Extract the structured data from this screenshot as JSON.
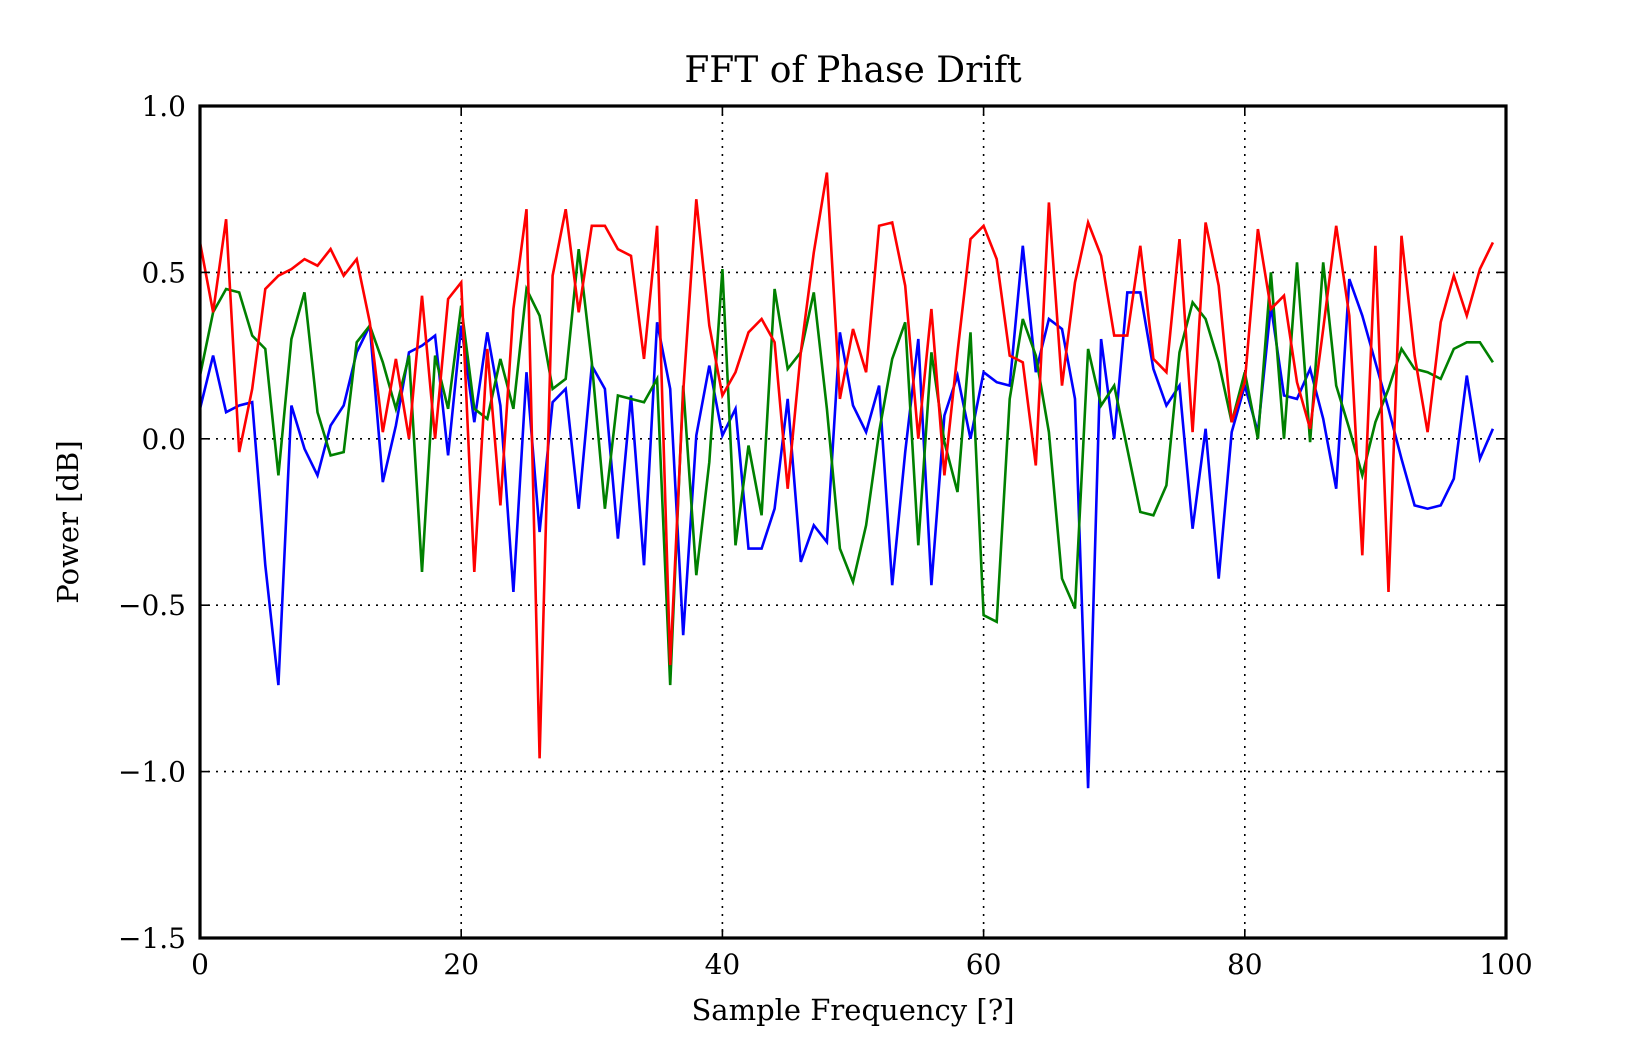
{
  "chart_data": {
    "type": "line",
    "title": "FFT of Phase Drift",
    "xlabel": "Sample Frequency [?]",
    "ylabel": "Power [dB]",
    "xlim": [
      0,
      100
    ],
    "ylim": [
      -1.5,
      1.0
    ],
    "xticks": [
      0,
      20,
      40,
      60,
      80,
      100
    ],
    "yticks": [
      -1.5,
      -1.0,
      -0.5,
      0.0,
      0.5,
      1.0
    ],
    "xtick_labels": [
      "0",
      "20",
      "40",
      "60",
      "80",
      "100"
    ],
    "ytick_labels": [
      "−1.5",
      "−1.0",
      "−0.5",
      "0.0",
      "0.5",
      "1.0"
    ],
    "grid": true,
    "x": [
      0,
      1,
      2,
      3,
      4,
      5,
      6,
      7,
      8,
      9,
      10,
      11,
      12,
      13,
      14,
      15,
      16,
      17,
      18,
      19,
      20,
      21,
      22,
      23,
      24,
      25,
      26,
      27,
      28,
      29,
      30,
      31,
      32,
      33,
      34,
      35,
      36,
      37,
      38,
      39,
      40,
      41,
      42,
      43,
      44,
      45,
      46,
      47,
      48,
      49,
      50,
      51,
      52,
      53,
      54,
      55,
      56,
      57,
      58,
      59,
      60,
      61,
      62,
      63,
      64,
      65,
      66,
      67,
      68,
      69,
      70,
      71,
      72,
      73,
      74,
      75,
      76,
      77,
      78,
      79,
      80,
      81,
      82,
      83,
      84,
      85,
      86,
      87,
      88,
      89,
      90,
      91,
      92,
      93,
      94,
      95,
      96,
      97,
      98,
      99
    ],
    "series": [
      {
        "name": "blue",
        "color": "#0000ff",
        "values": [
          0.09,
          0.25,
          0.08,
          0.1,
          0.11,
          -0.38,
          -0.74,
          0.1,
          -0.03,
          -0.11,
          0.04,
          0.1,
          0.26,
          0.34,
          -0.13,
          0.04,
          0.26,
          0.28,
          0.31,
          -0.05,
          0.34,
          0.05,
          0.32,
          0.1,
          -0.46,
          0.2,
          -0.28,
          0.11,
          0.15,
          -0.21,
          0.22,
          0.15,
          -0.3,
          0.13,
          -0.38,
          0.35,
          0.15,
          -0.59,
          0.01,
          0.22,
          0.01,
          0.09,
          -0.33,
          -0.33,
          -0.21,
          0.12,
          -0.37,
          -0.26,
          -0.31,
          0.32,
          0.1,
          0.02,
          0.16,
          -0.44,
          -0.04,
          0.3,
          -0.44,
          0.07,
          0.19,
          0.0,
          0.2,
          0.17,
          0.16,
          0.58,
          0.2,
          0.36,
          0.33,
          0.12,
          -1.05,
          0.3,
          0.0,
          0.44,
          0.44,
          0.21,
          0.1,
          0.16,
          -0.27,
          0.03,
          -0.42,
          0.02,
          0.16,
          0.02,
          0.4,
          0.13,
          0.12,
          0.21,
          0.06,
          -0.15,
          0.48,
          0.37,
          0.23,
          0.09,
          -0.06,
          -0.2,
          -0.21,
          -0.2,
          -0.12,
          0.19,
          -0.06,
          0.03
        ]
      },
      {
        "name": "green",
        "color": "#008000",
        "values": [
          0.19,
          0.38,
          0.45,
          0.44,
          0.31,
          0.27,
          -0.11,
          0.3,
          0.44,
          0.08,
          -0.05,
          -0.04,
          0.29,
          0.34,
          0.23,
          0.09,
          0.25,
          -0.4,
          0.25,
          0.09,
          0.4,
          0.09,
          0.06,
          0.24,
          0.09,
          0.45,
          0.37,
          0.15,
          0.18,
          0.57,
          0.23,
          -0.21,
          0.13,
          0.12,
          0.11,
          0.18,
          -0.74,
          0.16,
          -0.41,
          -0.07,
          0.51,
          -0.32,
          -0.02,
          -0.23,
          0.45,
          0.21,
          0.26,
          0.44,
          0.09,
          -0.33,
          -0.43,
          -0.26,
          0.02,
          0.24,
          0.35,
          -0.32,
          0.26,
          -0.01,
          -0.16,
          0.32,
          -0.53,
          -0.55,
          0.12,
          0.36,
          0.25,
          0.02,
          -0.42,
          -0.51,
          0.27,
          0.1,
          0.16,
          -0.03,
          -0.22,
          -0.23,
          -0.14,
          0.26,
          0.41,
          0.36,
          0.23,
          0.05,
          0.2,
          0.0,
          0.5,
          0.0,
          0.53,
          -0.01,
          0.53,
          0.16,
          0.03,
          -0.11,
          0.05,
          0.15,
          0.27,
          0.21,
          0.2,
          0.18,
          0.27,
          0.29,
          0.29,
          0.23
        ]
      },
      {
        "name": "red",
        "color": "#ff0000",
        "values": [
          0.59,
          0.38,
          0.66,
          -0.04,
          0.15,
          0.45,
          0.49,
          0.51,
          0.54,
          0.52,
          0.57,
          0.49,
          0.54,
          0.35,
          0.02,
          0.24,
          0.0,
          0.43,
          0.0,
          0.42,
          0.47,
          -0.4,
          0.27,
          -0.2,
          0.39,
          0.69,
          -0.96,
          0.49,
          0.69,
          0.38,
          0.64,
          0.64,
          0.57,
          0.55,
          0.24,
          0.64,
          -0.68,
          0.14,
          0.72,
          0.34,
          0.13,
          0.2,
          0.32,
          0.36,
          0.29,
          -0.15,
          0.26,
          0.56,
          0.8,
          0.12,
          0.33,
          0.2,
          0.64,
          0.65,
          0.46,
          0.0,
          0.39,
          -0.11,
          0.26,
          0.6,
          0.64,
          0.54,
          0.25,
          0.23,
          -0.08,
          0.71,
          0.16,
          0.47,
          0.65,
          0.55,
          0.31,
          0.31,
          0.58,
          0.24,
          0.2,
          0.6,
          0.02,
          0.65,
          0.46,
          0.05,
          0.17,
          0.63,
          0.39,
          0.43,
          0.17,
          0.03,
          0.33,
          0.64,
          0.37,
          -0.35,
          0.58,
          -0.46,
          0.61,
          0.25,
          0.02,
          0.35,
          0.49,
          0.37,
          0.51,
          0.59
        ]
      }
    ]
  }
}
